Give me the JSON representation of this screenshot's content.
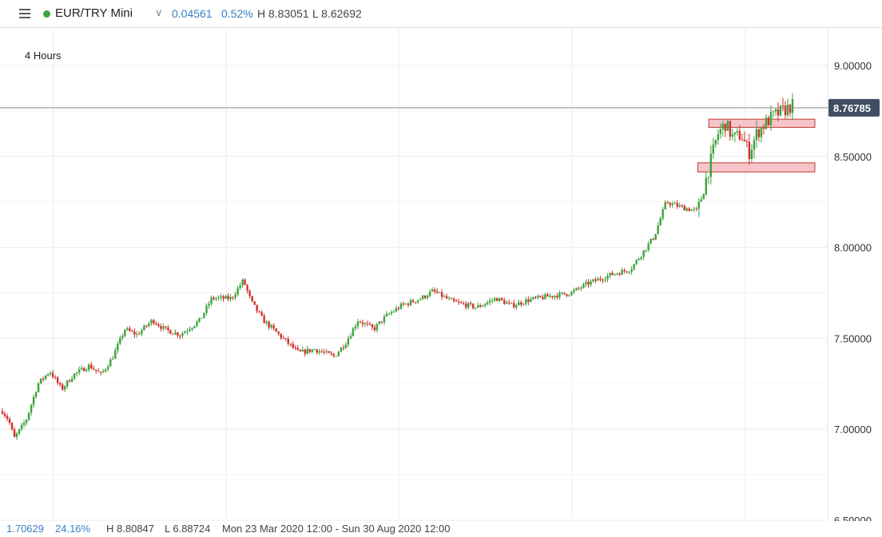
{
  "header": {
    "instrument": "EUR/TRY Mini",
    "change": "0.04561",
    "change_pct": "0.52%",
    "high": "H 8.83051",
    "low": "L 8.62692",
    "menu_icon": "hamburger-menu-icon",
    "dropdown_icon": "chevron-down-icon"
  },
  "period_label": "4 Hours",
  "footer": {
    "change": "1.70629",
    "change_pct": "24.16%",
    "high": "H 8.80847",
    "low": "L 6.88724",
    "date_range": "Mon 23 Mar 2020 12:00 - Sun 30 Aug 2020 12:00"
  },
  "colors": {
    "up": "#3ea33b",
    "down": "#d0312d",
    "accent": "#3a7ec0",
    "price_tag": "#3f4e63",
    "zone_fill": "#f5c5cb",
    "zone_stroke": "#c0392b"
  },
  "chart_data": {
    "type": "candlestick",
    "x_range": [
      "Mon 23 Mar 2020 12:00",
      "Sun 30 Aug 2020 12:00"
    ],
    "ylim": [
      6.5,
      9.25
    ],
    "y_ticks": [
      "9.00000",
      "8.50000",
      "8.00000",
      "7.50000",
      "7.00000",
      "6.50000"
    ],
    "y_tick_values": [
      9.0,
      8.5,
      8.0,
      7.5,
      7.0,
      6.5
    ],
    "current_price": 8.76785,
    "current_price_label": "8.76785",
    "grid": true,
    "anchors": [
      [
        0,
        7.1
      ],
      [
        0.008,
        7.05
      ],
      [
        0.015,
        6.95
      ],
      [
        0.03,
        7.05
      ],
      [
        0.045,
        7.25
      ],
      [
        0.06,
        7.32
      ],
      [
        0.075,
        7.22
      ],
      [
        0.09,
        7.3
      ],
      [
        0.11,
        7.35
      ],
      [
        0.125,
        7.3
      ],
      [
        0.14,
        7.4
      ],
      [
        0.155,
        7.55
      ],
      [
        0.17,
        7.52
      ],
      [
        0.19,
        7.6
      ],
      [
        0.205,
        7.55
      ],
      [
        0.225,
        7.52
      ],
      [
        0.25,
        7.6
      ],
      [
        0.265,
        7.72
      ],
      [
        0.29,
        7.72
      ],
      [
        0.305,
        7.82
      ],
      [
        0.315,
        7.7
      ],
      [
        0.33,
        7.6
      ],
      [
        0.35,
        7.52
      ],
      [
        0.375,
        7.42
      ],
      [
        0.395,
        7.44
      ],
      [
        0.42,
        7.4
      ],
      [
        0.435,
        7.48
      ],
      [
        0.45,
        7.6
      ],
      [
        0.47,
        7.55
      ],
      [
        0.485,
        7.62
      ],
      [
        0.505,
        7.68
      ],
      [
        0.53,
        7.72
      ],
      [
        0.545,
        7.76
      ],
      [
        0.57,
        7.7
      ],
      [
        0.6,
        7.67
      ],
      [
        0.625,
        7.72
      ],
      [
        0.645,
        7.68
      ],
      [
        0.665,
        7.71
      ],
      [
        0.69,
        7.73
      ],
      [
        0.72,
        7.75
      ],
      [
        0.74,
        7.8
      ],
      [
        0.77,
        7.85
      ],
      [
        0.795,
        7.88
      ],
      [
        0.81,
        7.97
      ],
      [
        0.825,
        8.06
      ],
      [
        0.84,
        8.25
      ],
      [
        0.86,
        8.22
      ],
      [
        0.88,
        8.2
      ],
      [
        0.895,
        8.45
      ],
      [
        0.905,
        8.62
      ],
      [
        0.915,
        8.68
      ],
      [
        0.925,
        8.6
      ],
      [
        0.935,
        8.62
      ],
      [
        0.945,
        8.52
      ],
      [
        0.955,
        8.63
      ],
      [
        0.965,
        8.68
      ],
      [
        0.975,
        8.72
      ],
      [
        1.0,
        8.78
      ]
    ],
    "num_candles": 330,
    "annotations": [
      {
        "type": "zone",
        "y_top": 8.705,
        "y_bottom": 8.66,
        "x_start": 0.894,
        "x_end": 0.98
      },
      {
        "type": "zone",
        "y_top": 8.465,
        "y_bottom": 8.415,
        "x_start": 0.88,
        "x_end": 0.98
      }
    ]
  }
}
